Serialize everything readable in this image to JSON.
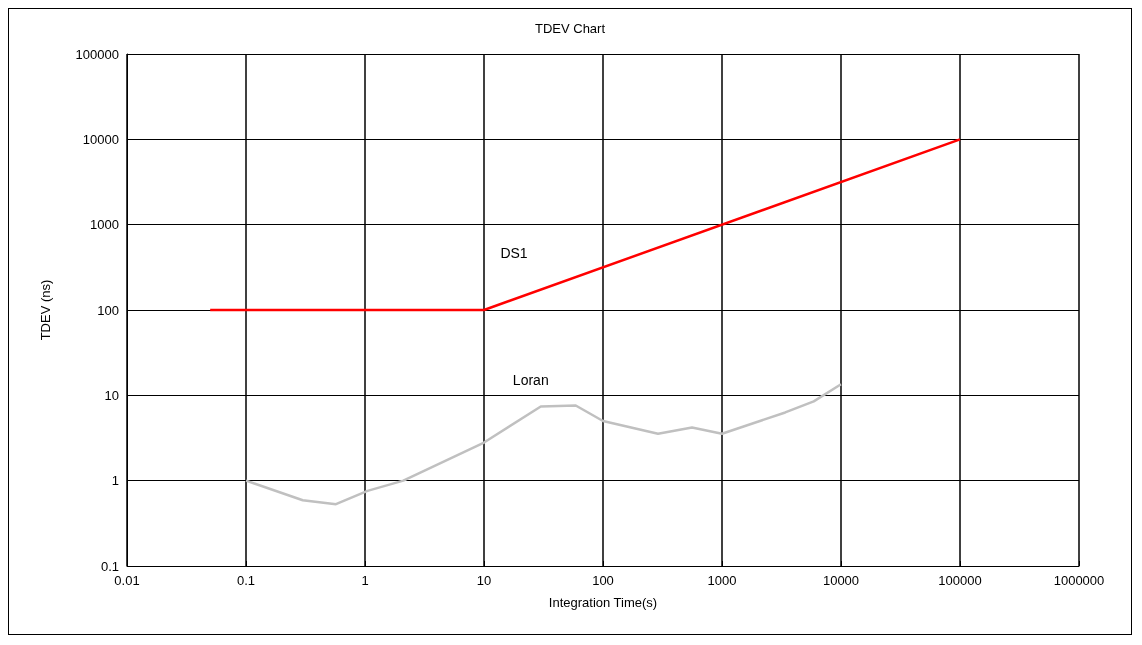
{
  "chart_data": {
    "type": "line",
    "title": "TDEV Chart",
    "xlabel": "Integration Time(s)",
    "ylabel": "TDEV (ns)",
    "log": "xy",
    "grid": true,
    "legend": false,
    "marker": "none",
    "line_style": "solid",
    "xlim": [
      0.01,
      1000000
    ],
    "xticks": [
      0.01,
      0.1,
      1,
      10,
      100,
      1000,
      10000,
      100000,
      1000000
    ],
    "ylim": [
      0.1,
      100000
    ],
    "yticks": [
      0.1,
      1,
      10,
      100,
      1000,
      10000,
      100000
    ],
    "series": [
      {
        "name": "DS1",
        "color": "#ff0000",
        "x": [
          0.05,
          10,
          100000
        ],
        "values": [
          100,
          100,
          10000
        ]
      },
      {
        "name": "Loran",
        "color": "#c0c0c0",
        "x": [
          0.1,
          0.3,
          0.57,
          1.05,
          2.1,
          10,
          30,
          59,
          100,
          290,
          560,
          1000,
          3400,
          5900,
          10000
        ],
        "values": [
          1.0,
          0.59,
          0.53,
          0.76,
          1.0,
          2.8,
          7.4,
          7.6,
          5.0,
          3.55,
          4.2,
          3.55,
          6.3,
          8.5,
          13.5
        ]
      }
    ]
  }
}
